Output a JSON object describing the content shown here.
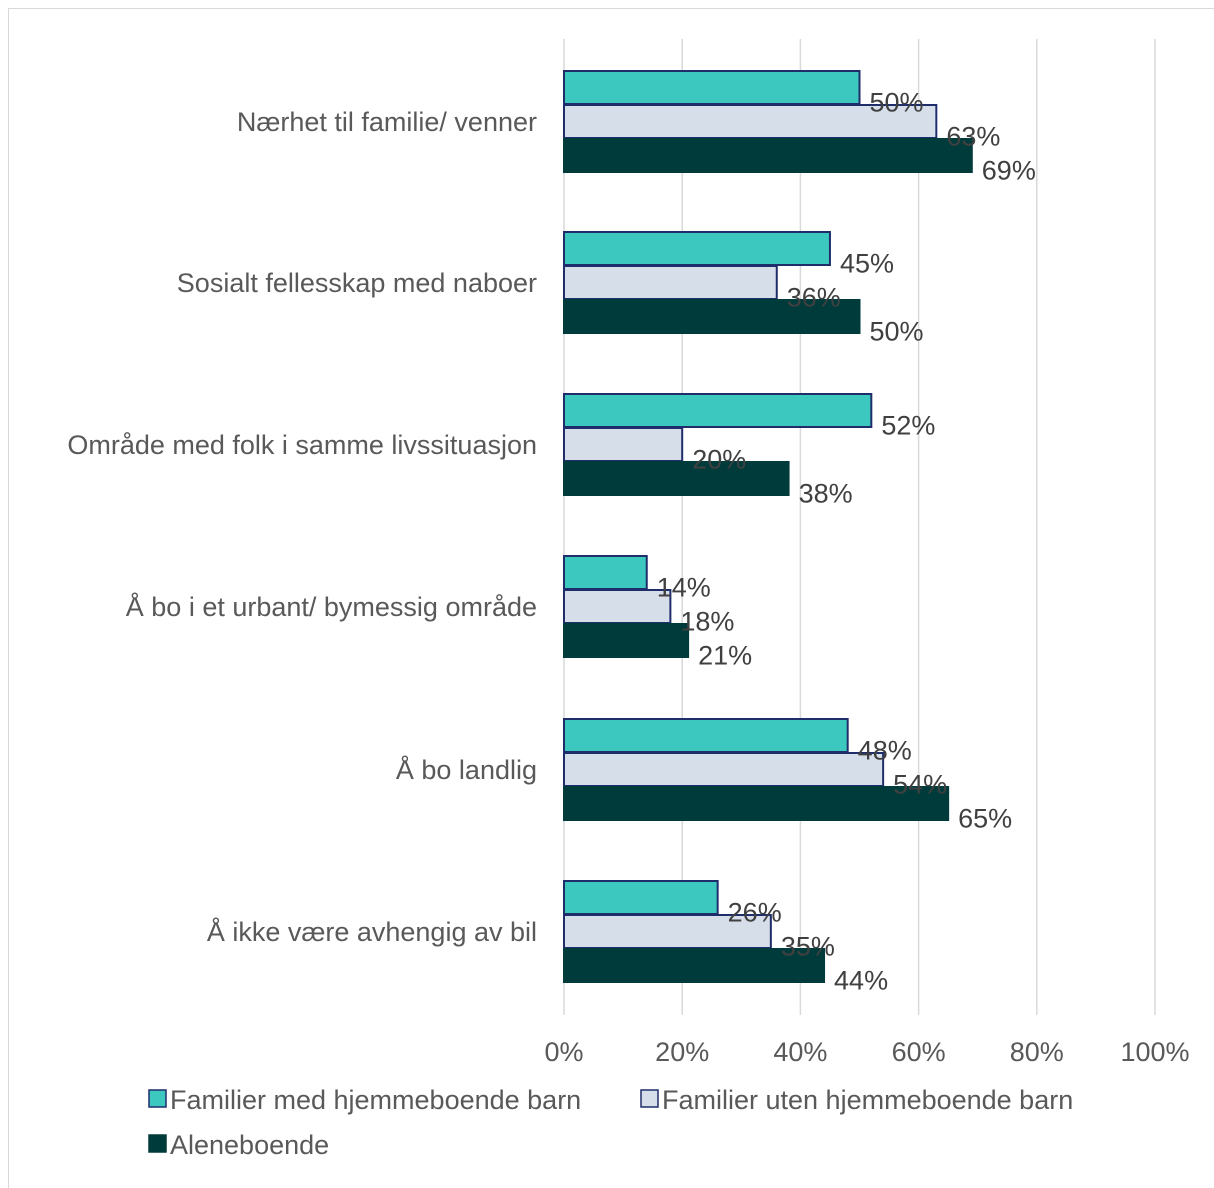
{
  "chart_data": {
    "type": "bar",
    "orientation": "horizontal",
    "categories": [
      "Nærhet til familie/ venner",
      "Sosialt fellesskap med naboer",
      "Område med folk i samme livssituasjon",
      "Å bo i et urbant/ bymessig område",
      "Å bo landlig",
      "Å ikke være avhengig av bil"
    ],
    "series": [
      {
        "name": "Familier med hjemmeboende barn",
        "color": "#3cc8bf",
        "stroke": "#1f2d6b",
        "values": [
          50,
          45,
          52,
          14,
          48,
          26
        ],
        "labels": [
          "50%",
          "45%",
          "52%",
          "14%",
          "48%",
          "26%"
        ]
      },
      {
        "name": "Familier uten hjemmeboende barn",
        "color": "#d6dfe9",
        "stroke": "#1f2d6b",
        "values": [
          63,
          36,
          20,
          18,
          54,
          35
        ],
        "labels": [
          "63%",
          "36%",
          "20%",
          "18%",
          "54%",
          "35%"
        ]
      },
      {
        "name": "Aleneboende",
        "color": "#003b3b",
        "stroke": "#003b3b",
        "values": [
          69,
          50,
          38,
          21,
          65,
          44
        ],
        "labels": [
          "69%",
          "50%",
          "38%",
          "21%",
          "65%",
          "44%"
        ]
      }
    ],
    "xlim": [
      0,
      100
    ],
    "ticks": [
      0,
      20,
      40,
      60,
      80,
      100
    ],
    "tick_labels": [
      "0%",
      "20%",
      "40%",
      "60%",
      "80%",
      "100%"
    ],
    "grid": true,
    "legend_position": "bottom",
    "title": "",
    "xlabel": "",
    "ylabel": ""
  }
}
